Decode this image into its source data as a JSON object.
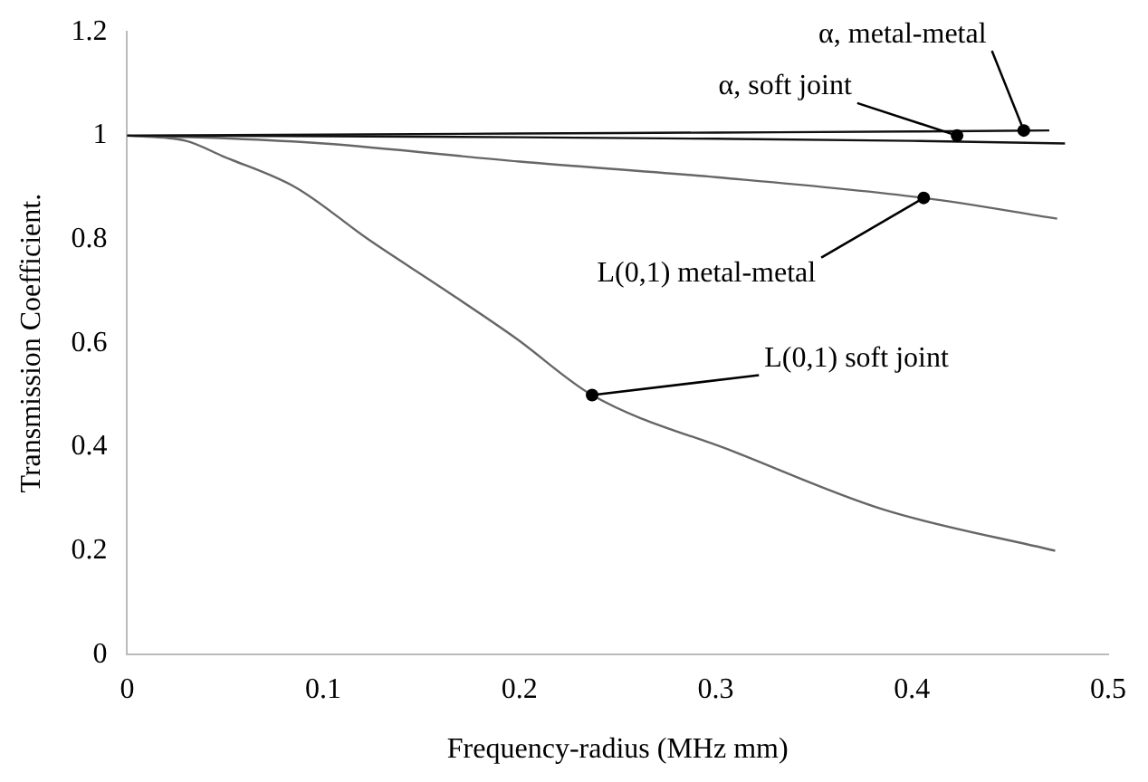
{
  "chart_data": {
    "type": "line",
    "xlabel": "Frequency-radius (MHz mm)",
    "ylabel": "Transmission Coefficient.",
    "xlim": [
      0,
      0.5
    ],
    "xticks": [
      0,
      0.1,
      0.2,
      0.3,
      0.4,
      0.5
    ],
    "ylim": [
      0,
      1.2
    ],
    "yticks": [
      0,
      0.2,
      0.4,
      0.6,
      0.8,
      1,
      1.2
    ],
    "grid": false,
    "legend": false,
    "marker": "none",
    "line_style": "solid",
    "series": [
      {
        "color": "#111111",
        "x": [
          0,
          0.1,
          0.2,
          0.3,
          0.4,
          0.47
        ],
        "values": [
          1,
          1.002,
          1.004,
          1.006,
          1.008,
          1.01
        ]
      },
      {
        "color": "#111111",
        "x": [
          0,
          0.1,
          0.2,
          0.3,
          0.4,
          0.478
        ],
        "values": [
          1,
          0.999,
          0.997,
          0.994,
          0.99,
          0.985
        ]
      },
      {
        "color": "#666666",
        "x": [
          0,
          0.05,
          0.1,
          0.2,
          0.3,
          0.406,
          0.474
        ],
        "values": [
          1,
          0.995,
          0.985,
          0.95,
          0.92,
          0.88,
          0.84
        ]
      },
      {
        "color": "#666666",
        "x": [
          0,
          0.03,
          0.049,
          0.086,
          0.123,
          0.161,
          0.198,
          0.237,
          0.31,
          0.385,
          0.473
        ],
        "values": [
          1,
          0.99,
          0.96,
          0.9,
          0.8,
          0.705,
          0.61,
          0.5,
          0.39,
          0.28,
          0.2
        ]
      }
    ],
    "annotations": [
      {
        "text": "α, metal-metal",
        "x": 0.457,
        "y": 1.01
      },
      {
        "text": "α, soft joint",
        "x": 0.423,
        "y": 1.0
      },
      {
        "text": "L(0,1) metal-metal",
        "x": 0.406,
        "y": 0.88
      },
      {
        "text": "L(0,1) soft joint",
        "x": 0.237,
        "y": 0.5
      }
    ]
  }
}
